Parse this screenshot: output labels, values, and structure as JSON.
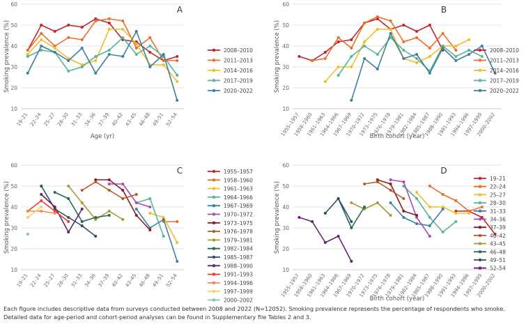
{
  "caption": {
    "line1": "Each figure includes descriptive data from surveys conducted between 2008 and 2022 (N=12052). Smoking prevalence represents the percentage of respondents who smoke.",
    "line2": "Detailed data for age-period and cohort-period analyses can be found in Supplementary file Tables 2 and 3."
  },
  "chart_data": [
    {
      "id": "A",
      "panel_label": "A",
      "type": "line",
      "title": "",
      "xlabel": "Age (yr)",
      "ylabel": "Smoking prevalence (%)",
      "ylim": [
        10,
        60
      ],
      "yticks": [
        10,
        20,
        30,
        40,
        50,
        60
      ],
      "grid": true,
      "legend_position": "right",
      "categories": [
        "19–21",
        "22–24",
        "25–27",
        "28–30",
        "31–33",
        "34–36",
        "37–39",
        "40–42",
        "43–45",
        "46–48",
        "49–51",
        "52–54"
      ],
      "series": [
        {
          "name": "2008–2010",
          "color": "#c0232a",
          "values": [
            38,
            50,
            47,
            50,
            49,
            53,
            51,
            43,
            42,
            37,
            33,
            35
          ]
        },
        {
          "name": "2011–2013",
          "color": "#ef6c28",
          "values": [
            38,
            46,
            40,
            44,
            43,
            52,
            53,
            52,
            39,
            44,
            33,
            33
          ]
        },
        {
          "name": "2014–2016",
          "color": "#f2bc28",
          "values": [
            36,
            43,
            39,
            34,
            31,
            33,
            48,
            48,
            41,
            31,
            31,
            23
          ]
        },
        {
          "name": "2017–2019",
          "color": "#57b59a",
          "values": [
            35,
            38,
            37,
            28,
            30,
            35,
            38,
            44,
            36,
            40,
            35,
            26
          ]
        },
        {
          "name": "2020–2022",
          "color": "#3f7ea1",
          "values": [
            27,
            40,
            37,
            33,
            39,
            27,
            36,
            35,
            47,
            30,
            36,
            14
          ]
        }
      ]
    },
    {
      "id": "B",
      "panel_label": "B",
      "type": "line",
      "title": "",
      "xlabel": "Birth cohort (year)",
      "ylabel": "Smoking prevalence (%)",
      "ylim": [
        10,
        60
      ],
      "yticks": [
        10,
        20,
        30,
        40,
        50,
        60
      ],
      "grid": true,
      "legend_position": "right",
      "categories": [
        "1955–1957",
        "1958–1960",
        "1961–1963",
        "1964–1966",
        "1967–1969",
        "1970–1972",
        "1973–1975",
        "1976–1978",
        "1979–1981",
        "1982–1984",
        "1985–1987",
        "1988–1990",
        "1991–1993",
        "1994–1996",
        "1997–1999",
        "2000–2002"
      ],
      "series": [
        {
          "name": "2008–2010",
          "color": "#c0232a",
          "values": [
            35,
            33,
            37,
            42,
            43,
            51,
            53,
            48,
            50,
            47,
            50,
            38,
            null,
            null,
            null,
            null
          ]
        },
        {
          "name": "2011–2013",
          "color": "#ef6c28",
          "values": [
            null,
            33,
            34,
            44,
            39,
            51,
            54,
            52,
            42,
            44,
            39,
            46,
            38,
            null,
            null,
            null
          ]
        },
        {
          "name": "2014–2016",
          "color": "#f2bc28",
          "values": [
            null,
            null,
            23,
            30,
            30,
            42,
            48,
            48,
            34,
            32,
            35,
            40,
            40,
            43,
            null,
            null
          ]
        },
        {
          "name": "2017–2019",
          "color": "#57b59a",
          "values": [
            null,
            null,
            null,
            26,
            35,
            40,
            36,
            44,
            38,
            34,
            28,
            40,
            35,
            38,
            35,
            null
          ]
        },
        {
          "name": "2020–2022",
          "color": "#3f7ea1",
          "values": [
            null,
            null,
            null,
            null,
            14,
            34,
            29,
            46,
            34,
            36,
            27,
            39,
            33,
            36,
            40,
            27
          ]
        }
      ]
    },
    {
      "id": "C",
      "panel_label": "C",
      "type": "line",
      "title": "",
      "xlabel": "",
      "ylabel": "Smoking prevalence (%)",
      "ylim": [
        10,
        60
      ],
      "yticks": [
        10,
        20,
        30,
        40,
        50,
        60
      ],
      "grid": true,
      "legend_position": "right",
      "categories": [
        "19–21",
        "22–24",
        "25–27",
        "28–30",
        "31–33",
        "34–36",
        "37–39",
        "40–42",
        "43–45",
        "46–48",
        "49–51",
        "52–54"
      ],
      "series": [
        {
          "name": "1955–1957",
          "color": "#c0232a",
          "values": [
            null,
            null,
            null,
            null,
            null,
            null,
            null,
            null,
            null,
            null,
            null,
            33
          ]
        },
        {
          "name": "1958–1960",
          "color": "#ef6c28",
          "values": [
            null,
            null,
            null,
            null,
            null,
            null,
            null,
            null,
            null,
            null,
            33,
            33
          ]
        },
        {
          "name": "1961–1963",
          "color": "#f2bc28",
          "values": [
            null,
            null,
            null,
            null,
            null,
            null,
            null,
            null,
            null,
            37,
            35,
            23
          ]
        },
        {
          "name": "1964–1966",
          "color": "#57b59a",
          "values": [
            null,
            null,
            null,
            null,
            null,
            null,
            null,
            null,
            42,
            44,
            26,
            null
          ]
        },
        {
          "name": "1967–1969",
          "color": "#3f7ea1",
          "values": [
            null,
            null,
            null,
            null,
            null,
            null,
            null,
            null,
            39,
            30,
            34,
            14
          ]
        },
        {
          "name": "1970–1972",
          "color": "#a64fb0",
          "values": [
            null,
            null,
            null,
            null,
            null,
            null,
            51,
            51,
            42,
            40,
            null,
            null
          ]
        },
        {
          "name": "1973–1975",
          "color": "#8a1c23",
          "values": [
            null,
            null,
            null,
            null,
            null,
            53,
            53,
            48,
            36,
            29,
            null,
            null
          ]
        },
        {
          "name": "1976–1978",
          "color": "#b35a24",
          "values": [
            null,
            null,
            null,
            null,
            48,
            52,
            48,
            44,
            46,
            null,
            null,
            null
          ]
        },
        {
          "name": "1979–1981",
          "color": "#a89a2e",
          "values": [
            null,
            null,
            null,
            50,
            42,
            34,
            38,
            34,
            null,
            null,
            null,
            null
          ]
        },
        {
          "name": "1982–1984",
          "color": "#236b57",
          "values": [
            null,
            null,
            47,
            44,
            33,
            35,
            36,
            null,
            null,
            null,
            null,
            null
          ]
        },
        {
          "name": "1985–1987",
          "color": "#2a4f63",
          "values": [
            null,
            50,
            39,
            35,
            31,
            26,
            null,
            null,
            null,
            null,
            null,
            null
          ]
        },
        {
          "name": "1988–1990",
          "color": "#5d2766",
          "values": [
            null,
            46,
            40,
            28,
            39,
            null,
            null,
            null,
            null,
            null,
            null,
            null
          ]
        },
        {
          "name": "1991–1993",
          "color": "#ef3b2c",
          "values": [
            38,
            43,
            38,
            33,
            null,
            null,
            null,
            null,
            null,
            null,
            null,
            null
          ]
        },
        {
          "name": "1994–1996",
          "color": "#f4864e",
          "values": [
            38,
            38,
            37,
            null,
            null,
            null,
            null,
            null,
            null,
            null,
            null,
            null
          ]
        },
        {
          "name": "1997–1999",
          "color": "#f4d35e",
          "values": [
            35,
            40,
            null,
            null,
            null,
            null,
            null,
            null,
            null,
            null,
            null,
            null
          ]
        },
        {
          "name": "2000–2002",
          "color": "#7cc7b2",
          "values": [
            27,
            null,
            null,
            null,
            null,
            null,
            null,
            null,
            null,
            null,
            null,
            null
          ]
        }
      ]
    },
    {
      "id": "D",
      "panel_label": "D",
      "type": "line",
      "title": "",
      "xlabel": "Birth cohort (year)",
      "ylabel": "Smoking prevalence (%)",
      "ylim": [
        10,
        60
      ],
      "yticks": [
        10,
        20,
        30,
        40,
        50,
        60
      ],
      "grid": true,
      "legend_position": "right",
      "categories": [
        "1955–1957",
        "1958–1960",
        "1961–1963",
        "1964–1966",
        "1967–1969",
        "1970–1972",
        "1973–1975",
        "1976–1978",
        "1979–1981",
        "1982–1984",
        "1985–1987",
        "1988–1990",
        "1991–1993",
        "1994–1996",
        "1997–1999",
        "2000–2002"
      ],
      "series": [
        {
          "name": "19–21",
          "color": "#c0232a",
          "values": [
            null,
            null,
            null,
            null,
            null,
            null,
            null,
            null,
            null,
            null,
            null,
            null,
            38,
            38,
            35,
            27
          ]
        },
        {
          "name": "22–24",
          "color": "#ef6c28",
          "values": [
            null,
            null,
            null,
            null,
            null,
            null,
            null,
            null,
            null,
            null,
            50,
            46,
            43,
            38,
            40,
            null
          ]
        },
        {
          "name": "25–27",
          "color": "#f2bc28",
          "values": [
            null,
            null,
            null,
            null,
            null,
            null,
            null,
            null,
            null,
            47,
            40,
            40,
            37,
            37,
            null,
            null
          ]
        },
        {
          "name": "28–30",
          "color": "#57b59a",
          "values": [
            null,
            null,
            null,
            null,
            null,
            null,
            null,
            null,
            50,
            44,
            35,
            28,
            33,
            null,
            null,
            null
          ]
        },
        {
          "name": "31–33",
          "color": "#3f7ea1",
          "values": [
            null,
            null,
            null,
            null,
            null,
            null,
            null,
            42,
            35,
            32,
            31,
            39,
            null,
            null,
            null,
            null
          ]
        },
        {
          "name": "34–36",
          "color": "#a64fb0",
          "values": [
            null,
            null,
            null,
            null,
            null,
            null,
            null,
            53,
            52,
            35,
            26,
            null,
            null,
            null,
            null,
            null
          ]
        },
        {
          "name": "37–39",
          "color": "#8a1c23",
          "values": [
            null,
            null,
            null,
            null,
            null,
            null,
            53,
            51,
            38,
            36,
            null,
            null,
            null,
            null,
            null,
            null
          ]
        },
        {
          "name": "40–42",
          "color": "#b35a24",
          "values": [
            null,
            null,
            null,
            null,
            null,
            51,
            52,
            48,
            44,
            null,
            null,
            null,
            null,
            null,
            null,
            null
          ]
        },
        {
          "name": "43–45",
          "color": "#a89a2e",
          "values": [
            null,
            null,
            null,
            null,
            42,
            39,
            42,
            36,
            null,
            null,
            null,
            null,
            null,
            null,
            null,
            null
          ]
        },
        {
          "name": "46–48",
          "color": "#236b57",
          "values": [
            null,
            null,
            null,
            44,
            30,
            40,
            null,
            null,
            null,
            null,
            null,
            null,
            null,
            null,
            null,
            null
          ]
        },
        {
          "name": "49–51",
          "color": "#2a4f63",
          "values": [
            null,
            null,
            37,
            44,
            33,
            null,
            null,
            null,
            null,
            null,
            null,
            null,
            null,
            null,
            null,
            null
          ]
        },
        {
          "name": "52–54",
          "color": "#5d2766",
          "values": [
            35,
            33,
            23,
            26,
            14,
            null,
            null,
            null,
            null,
            null,
            null,
            null,
            null,
            null,
            null,
            null
          ]
        }
      ]
    }
  ]
}
